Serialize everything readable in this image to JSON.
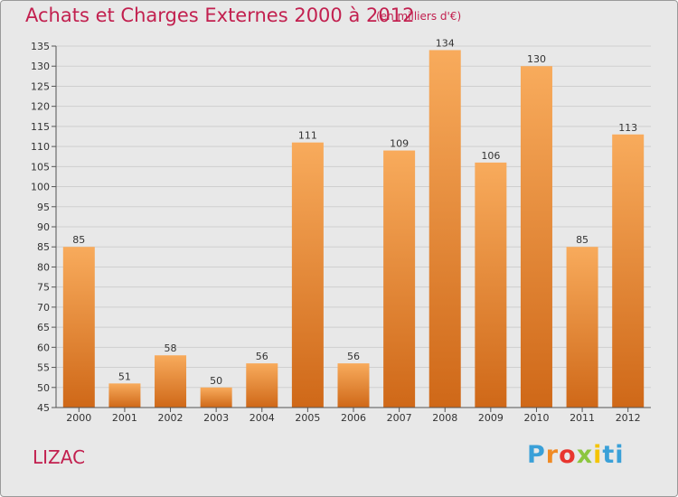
{
  "header": {
    "title": "Achats et Charges Externes 2000 à 2012",
    "subtitle": "(en milliers d'€)"
  },
  "footer": {
    "commune": "LIZAC",
    "logo_letters": [
      "P",
      "r",
      "o",
      "x",
      "i",
      "ti"
    ]
  },
  "colors": {
    "title": "#c2204f",
    "bar_light": "#f8ab5c",
    "bar_dark": "#cf6818",
    "background": "#e8e8e8"
  },
  "chart_data": {
    "type": "bar",
    "categories": [
      "2000",
      "2001",
      "2002",
      "2003",
      "2004",
      "2005",
      "2006",
      "2007",
      "2008",
      "2009",
      "2010",
      "2011",
      "2012"
    ],
    "values": [
      85,
      51,
      58,
      50,
      56,
      111,
      56,
      109,
      134,
      106,
      130,
      85,
      113
    ],
    "data_labels": [
      "85",
      "51",
      "58",
      "50",
      "56",
      "111",
      "56",
      "109",
      "134",
      "106",
      "130",
      "85",
      "113"
    ],
    "ylim": [
      45,
      135
    ],
    "yticks": [
      45,
      50,
      55,
      60,
      65,
      70,
      75,
      80,
      85,
      90,
      95,
      100,
      105,
      110,
      115,
      120,
      125,
      130,
      135
    ],
    "grid": true,
    "legend": "none"
  }
}
